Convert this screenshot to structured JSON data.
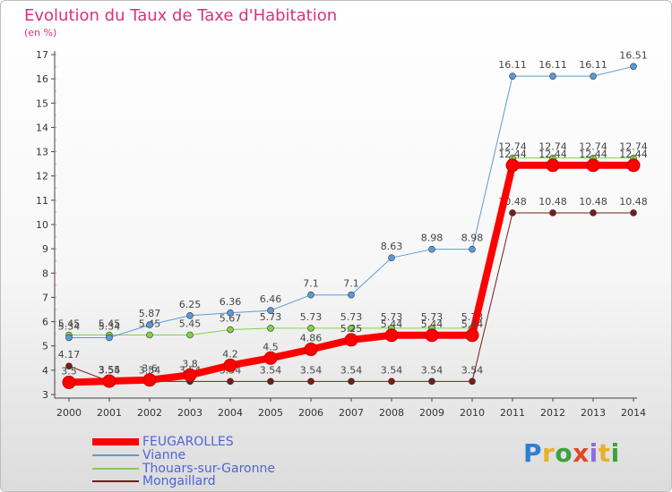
{
  "title": "Evolution du Taux de Taxe d'Habitation",
  "unit": "(en %)",
  "brand": [
    "P",
    "r",
    "o",
    "x",
    "i",
    "t",
    "i"
  ],
  "brand_colors": [
    "#2d7fd3",
    "#e6b227",
    "#3aa33e",
    "#e2452a",
    "#8f6fd8",
    "#e6b227",
    "#3aa33e"
  ],
  "chart_data": {
    "type": "line",
    "categories": [
      "2000",
      "2001",
      "2002",
      "2003",
      "2004",
      "2005",
      "2006",
      "2007",
      "2008",
      "2009",
      "2010",
      "2011",
      "2012",
      "2013",
      "2014"
    ],
    "y_ticks": [
      "3",
      "4",
      "5",
      "6",
      "7",
      "8",
      "9",
      "10",
      "11",
      "12",
      "13",
      "14",
      "15",
      "16",
      "17"
    ],
    "ylim": [
      3,
      17
    ],
    "grid": false,
    "legend_position": "bottom-left",
    "series": [
      {
        "name": "Mongaillard",
        "color": "#7a1a1a",
        "width": 1,
        "values": [
          4.17,
          3.54,
          3.54,
          3.54,
          3.54,
          3.54,
          3.54,
          3.54,
          3.54,
          3.54,
          3.54,
          10.48,
          10.48,
          10.48,
          10.48
        ],
        "labels": [
          "4.17",
          "3.54",
          "3.54",
          "3.54",
          "3.54",
          "3.54",
          "3.54",
          "3.54",
          "3.54",
          "3.54",
          "3.54",
          "10.48",
          "10.48",
          "10.48",
          "10.48"
        ]
      },
      {
        "name": "Thouars-sur-Garonne",
        "color": "#7fd24a",
        "width": 1,
        "values": [
          5.45,
          5.45,
          5.45,
          5.45,
          5.67,
          5.73,
          5.73,
          5.73,
          5.73,
          5.73,
          5.73,
          12.74,
          12.74,
          12.74,
          12.74
        ],
        "labels": [
          "5.45",
          "5.45",
          "5.45",
          "5.45",
          "5.67",
          "5.73",
          "5.73",
          "5.73",
          "5.73",
          "5.73",
          "5.73",
          "12.74",
          "12.74",
          "12.74",
          "12.74"
        ]
      },
      {
        "name": "Vianne",
        "color": "#5a9ad8",
        "width": 1,
        "values": [
          5.34,
          5.34,
          5.87,
          6.25,
          6.36,
          6.46,
          7.1,
          7.1,
          8.63,
          8.98,
          8.98,
          16.11,
          16.11,
          16.11,
          16.51
        ],
        "labels": [
          "5.34",
          "5.34",
          "5.87",
          "6.25",
          "6.36",
          "6.46",
          "7.1",
          "7.1",
          "8.63",
          "8.98",
          "8.98",
          "16.11",
          "16.11",
          "16.11",
          "16.51"
        ]
      },
      {
        "name": "FEUGAROLLES",
        "color": "#ff0000",
        "width": 8,
        "values": [
          3.5,
          3.55,
          3.6,
          3.8,
          4.2,
          4.5,
          4.86,
          5.25,
          5.44,
          5.44,
          5.44,
          12.44,
          12.44,
          12.44,
          12.44
        ],
        "labels": [
          "3.5",
          "3.55",
          "3.6",
          "3.8",
          "4.2",
          "4.5",
          "4.86",
          "5.25",
          "5.44",
          "5.44",
          "5.44",
          "12.44",
          "12.44",
          "12.44",
          "12.44"
        ]
      }
    ]
  },
  "legend": [
    {
      "label": "FEUGAROLLES",
      "color": "#ff0000",
      "thickness": 8
    },
    {
      "label": "Vianne",
      "color": "#5a9ad8",
      "thickness": 2
    },
    {
      "label": "Thouars-sur-Garonne",
      "color": "#7fd24a",
      "thickness": 2
    },
    {
      "label": "Mongaillard",
      "color": "#7a1a1a",
      "thickness": 2
    }
  ]
}
